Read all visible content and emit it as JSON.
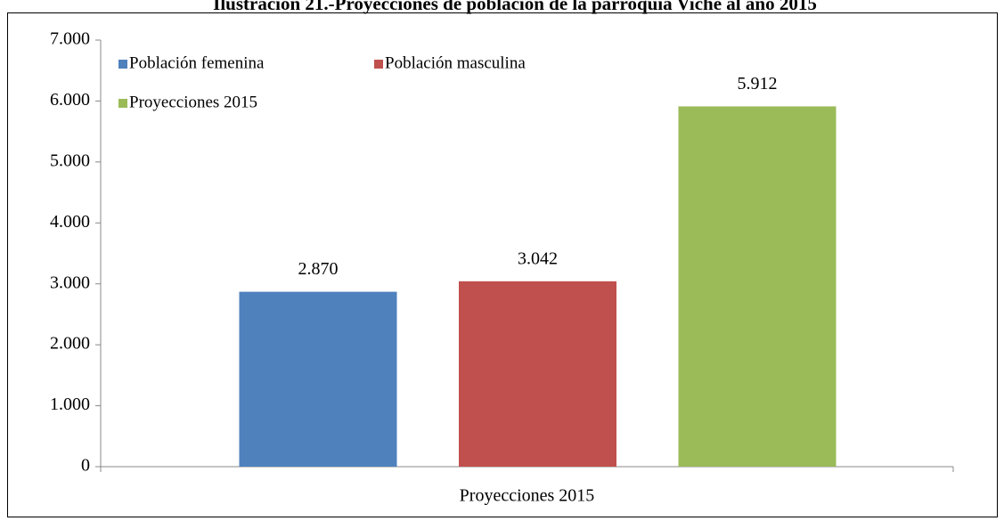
{
  "chart_data": {
    "type": "bar",
    "title": "Ilustración 21.-Proyecciones de población de la parroquia Viche al año 2015",
    "categories": [
      "Proyecciones 2015"
    ],
    "series": [
      {
        "name": "Población femenina",
        "color": "#4f81bd",
        "values": [
          2870
        ],
        "value_labels": [
          "2.870"
        ]
      },
      {
        "name": "Población masculina",
        "color": "#c0504d",
        "values": [
          3042
        ],
        "value_labels": [
          "3.042"
        ]
      },
      {
        "name": "Proyecciones 2015",
        "color": "#9bbb59",
        "values": [
          5912
        ],
        "value_labels": [
          "5.912"
        ]
      }
    ],
    "ylim": [
      0,
      7000
    ],
    "yticks": [
      {
        "value": 0,
        "label": "0"
      },
      {
        "value": 1000,
        "label": "1.000"
      },
      {
        "value": 2000,
        "label": "2.000"
      },
      {
        "value": 3000,
        "label": "3.000"
      },
      {
        "value": 4000,
        "label": "4.000"
      },
      {
        "value": 5000,
        "label": "5.000"
      },
      {
        "value": 6000,
        "label": "6.000"
      },
      {
        "value": 7000,
        "label": "7.000"
      }
    ],
    "grid": false,
    "legend": "upper left"
  }
}
